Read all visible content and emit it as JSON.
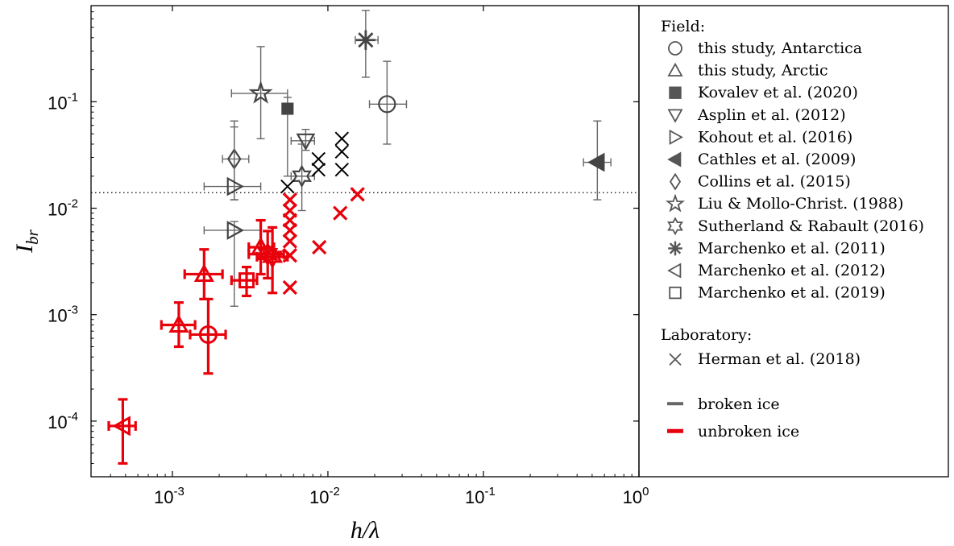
{
  "chart_data": {
    "type": "scatter",
    "xlabel": "h/λ",
    "ylabel": "I_br",
    "x_scale": "log",
    "y_scale": "log",
    "xlim": [
      0.0003,
      1
    ],
    "ylim": [
      3e-05,
      0.8
    ],
    "x_ticks": [
      {
        "value": 0.001,
        "base": "10",
        "exp": "-3"
      },
      {
        "value": 0.01,
        "base": "10",
        "exp": "-2"
      },
      {
        "value": 0.1,
        "base": "10",
        "exp": "-1"
      },
      {
        "value": 1,
        "base": "10",
        "exp": "0"
      }
    ],
    "y_ticks": [
      {
        "value": 0.0001,
        "base": "10",
        "exp": "-4"
      },
      {
        "value": 0.001,
        "base": "10",
        "exp": "-3"
      },
      {
        "value": 0.01,
        "base": "10",
        "exp": "-2"
      },
      {
        "value": 0.1,
        "base": "10",
        "exp": "-1"
      }
    ],
    "grid": false,
    "threshold_line": {
      "y": 0.014,
      "style": "dotted"
    },
    "colors": {
      "broken": "#555555",
      "unbroken": "#e8000b",
      "herman_broken": "#000000",
      "axis": "#000000"
    },
    "legend": {
      "placement": "right",
      "field_header": "Field:",
      "lab_header": "Laboratory:",
      "field_entries": [
        {
          "marker": "circle",
          "label": "this study, Antarctica"
        },
        {
          "marker": "triangle-up",
          "label": "this study, Arctic"
        },
        {
          "marker": "square-filled",
          "label": "Kovalev et al. (2020)"
        },
        {
          "marker": "triangle-down",
          "label": "Asplin et al. (2012)"
        },
        {
          "marker": "triangle-right",
          "label": "Kohout et al. (2016)"
        },
        {
          "marker": "triangle-left-filled",
          "label": "Cathles et al. (2009)"
        },
        {
          "marker": "diamond",
          "label": "Collins et al. (2015)"
        },
        {
          "marker": "pentagram",
          "label": "Liu & Mollo-Christ. (1988)"
        },
        {
          "marker": "hexagram",
          "label": "Sutherland & Rabault (2016)"
        },
        {
          "marker": "asterisk",
          "label": "Marchenko et al. (2011)"
        },
        {
          "marker": "triangle-left",
          "label": "Marchenko et al. (2012)"
        },
        {
          "marker": "square",
          "label": "Marchenko et al. (2019)"
        }
      ],
      "lab_entries": [
        {
          "marker": "x",
          "label": "Herman et al. (2018)"
        }
      ],
      "status_entries": [
        {
          "status": "broken",
          "label": "broken ice"
        },
        {
          "status": "unbroken",
          "label": "unbroken ice"
        }
      ]
    },
    "points": [
      {
        "marker": "asterisk",
        "status": "broken",
        "x": 0.0175,
        "y": 0.38,
        "xerr": [
          0.015,
          0.021
        ],
        "yerr": [
          0.17,
          0.72
        ]
      },
      {
        "marker": "circle",
        "status": "broken",
        "x": 0.024,
        "y": 0.095,
        "xerr": [
          0.0185,
          0.032
        ],
        "yerr": [
          0.04,
          0.24
        ]
      },
      {
        "marker": "pentagram",
        "status": "broken",
        "x": 0.0037,
        "y": 0.12,
        "xerr": [
          0.0024,
          0.0055
        ],
        "yerr": [
          0.045,
          0.33
        ]
      },
      {
        "marker": "square-filled",
        "status": "broken",
        "x": 0.0055,
        "y": 0.086,
        "xerr": null,
        "yerr": [
          0.02,
          0.11
        ]
      },
      {
        "marker": "triangle-down",
        "status": "broken",
        "x": 0.0072,
        "y": 0.043,
        "xerr": [
          0.0058,
          0.0082
        ],
        "yerr": [
          0.035,
          0.055
        ]
      },
      {
        "marker": "triangle-left-filled",
        "status": "broken",
        "x": 0.54,
        "y": 0.027,
        "xerr": [
          0.44,
          0.66
        ],
        "yerr": [
          0.012,
          0.066
        ]
      },
      {
        "marker": "diamond",
        "status": "broken",
        "x": 0.0025,
        "y": 0.029,
        "xerr": [
          0.0021,
          0.0031
        ],
        "yerr": [
          0.012,
          0.066
        ]
      },
      {
        "marker": "triangle-right",
        "status": "broken",
        "x": 0.0025,
        "y": 0.016,
        "xerr": [
          0.0016,
          0.0037
        ],
        "yerr": [
          0.012,
          0.058
        ]
      },
      {
        "marker": "triangle-right",
        "status": "broken",
        "x": 0.0025,
        "y": 0.0062,
        "xerr": [
          0.0016,
          0.0037
        ],
        "yerr": [
          0.0012,
          0.0075
        ]
      },
      {
        "marker": "hexagram",
        "status": "broken",
        "x": 0.0068,
        "y": 0.02,
        "xerr": [
          0.0058,
          0.0082
        ],
        "yerr": [
          0.0095,
          0.04
        ]
      },
      {
        "marker": "x",
        "status": "herman_broken",
        "x": 0.0055,
        "y": 0.016
      },
      {
        "marker": "x",
        "status": "herman_broken",
        "x": 0.0087,
        "y": 0.023
      },
      {
        "marker": "x",
        "status": "herman_broken",
        "x": 0.0087,
        "y": 0.029
      },
      {
        "marker": "x",
        "status": "herman_broken",
        "x": 0.0123,
        "y": 0.023
      },
      {
        "marker": "x",
        "status": "herman_broken",
        "x": 0.0123,
        "y": 0.034
      },
      {
        "marker": "x",
        "status": "herman_broken",
        "x": 0.0123,
        "y": 0.045
      },
      {
        "marker": "x",
        "status": "unbroken",
        "x": 0.0155,
        "y": 0.0135
      },
      {
        "marker": "x",
        "status": "unbroken",
        "x": 0.012,
        "y": 0.009
      },
      {
        "marker": "x",
        "status": "unbroken",
        "x": 0.0088,
        "y": 0.0043
      },
      {
        "marker": "x",
        "status": "unbroken",
        "x": 0.0057,
        "y": 0.012
      },
      {
        "marker": "x",
        "status": "unbroken",
        "x": 0.0057,
        "y": 0.0095
      },
      {
        "marker": "x",
        "status": "unbroken",
        "x": 0.0057,
        "y": 0.0077
      },
      {
        "marker": "x",
        "status": "unbroken",
        "x": 0.0057,
        "y": 0.0062
      },
      {
        "marker": "x",
        "status": "unbroken",
        "x": 0.0057,
        "y": 0.0049
      },
      {
        "marker": "x",
        "status": "unbroken",
        "x": 0.0057,
        "y": 0.0036
      },
      {
        "marker": "x",
        "status": "unbroken",
        "x": 0.0057,
        "y": 0.0018
      },
      {
        "marker": "triangle-up",
        "status": "unbroken",
        "x": 0.0037,
        "y": 0.0043,
        "xerr": [
          0.0031,
          0.0045
        ],
        "yerr": [
          0.0024,
          0.0077
        ]
      },
      {
        "marker": "hexagram",
        "status": "unbroken",
        "x": 0.0041,
        "y": 0.0037,
        "xerr": [
          0.0031,
          0.0052
        ],
        "yerr": [
          0.0022,
          0.0061
        ]
      },
      {
        "marker": "hexagram",
        "status": "unbroken",
        "x": 0.0044,
        "y": 0.0035,
        "xerr": [
          0.0035,
          0.0055
        ],
        "yerr": [
          0.0016,
          0.0066
        ]
      },
      {
        "marker": "square",
        "status": "unbroken",
        "x": 0.003,
        "y": 0.0021,
        "xerr": [
          0.0024,
          0.0035
        ],
        "yerr": [
          0.0015,
          0.0028
        ]
      },
      {
        "marker": "triangle-up",
        "status": "unbroken",
        "x": 0.0016,
        "y": 0.0024,
        "xerr": [
          0.0012,
          0.0021
        ],
        "yerr": [
          0.0014,
          0.0041
        ]
      },
      {
        "marker": "triangle-up",
        "status": "unbroken",
        "x": 0.0011,
        "y": 0.0008,
        "xerr": [
          0.00085,
          0.0014
        ],
        "yerr": [
          0.0005,
          0.0013
        ]
      },
      {
        "marker": "circle",
        "status": "unbroken",
        "x": 0.0017,
        "y": 0.00065,
        "xerr": [
          0.0013,
          0.0022
        ],
        "yerr": [
          0.00028,
          0.0014
        ]
      },
      {
        "marker": "triangle-left",
        "status": "unbroken",
        "x": 0.00048,
        "y": 9e-05,
        "xerr": [
          0.00039,
          0.00058
        ],
        "yerr": [
          4e-05,
          0.00016
        ]
      }
    ]
  }
}
